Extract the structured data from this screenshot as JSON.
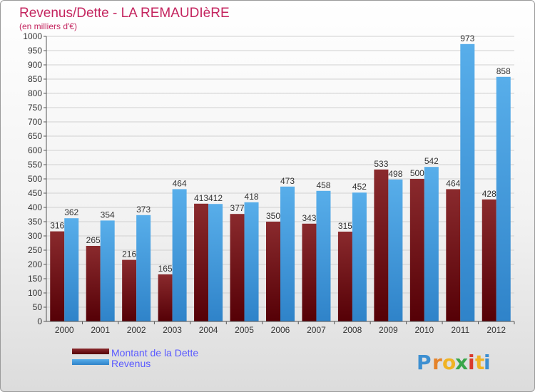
{
  "chart_data": {
    "type": "bar",
    "title": "Revenus/Dette - LA REMAUDIèRE",
    "subtitle": "(en milliers d'€)",
    "categories": [
      "2000",
      "2001",
      "2002",
      "2003",
      "2004",
      "2005",
      "2006",
      "2007",
      "2008",
      "2009",
      "2010",
      "2011",
      "2012"
    ],
    "series": [
      {
        "name": "Montant de la Dette",
        "color": "#6b0f12",
        "values": [
          316,
          265,
          216,
          165,
          413,
          377,
          350,
          343,
          315,
          533,
          500,
          464,
          428
        ]
      },
      {
        "name": "Revenus",
        "color": "#4aa3e8",
        "values": [
          362,
          354,
          373,
          464,
          412,
          418,
          473,
          458,
          452,
          498,
          542,
          973,
          858
        ]
      }
    ],
    "ylim": [
      0,
      1000
    ],
    "ytick_step": 50,
    "grid": true,
    "legend": "bottom-left"
  },
  "logo": {
    "letters": [
      "P",
      "r",
      "o",
      "x",
      "i",
      "t",
      "i"
    ],
    "colors": [
      "#3d8fd1",
      "#e5832a",
      "#f0b323",
      "#3aa64a",
      "#d93a2b",
      "#f0b323",
      "#3d8fd1"
    ]
  }
}
